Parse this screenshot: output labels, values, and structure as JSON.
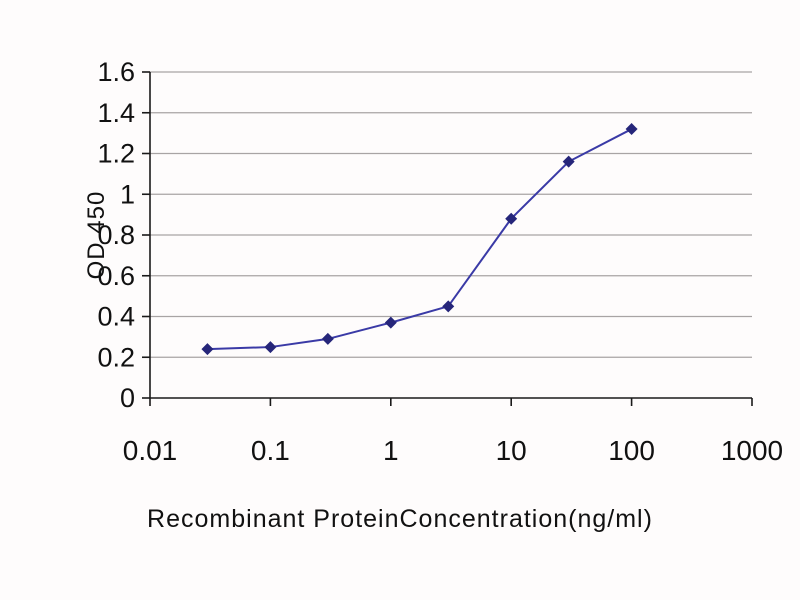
{
  "chart_data": {
    "type": "line",
    "title": "",
    "xlabel": "Recombinant ProteinConcentration(ng/ml)",
    "ylabel": "OD 450",
    "x_scale": "log",
    "xlim": [
      0.01,
      1000
    ],
    "ylim": [
      0,
      1.6
    ],
    "x": [
      0.03,
      0.1,
      0.3,
      1,
      3,
      10,
      30,
      100
    ],
    "series": [
      {
        "name": "OD 450",
        "values": [
          0.24,
          0.25,
          0.29,
          0.37,
          0.45,
          0.88,
          1.16,
          1.32
        ]
      }
    ],
    "y_ticks": [
      0,
      0.2,
      0.4,
      0.6,
      0.8,
      1,
      1.2,
      1.4,
      1.6
    ],
    "y_tick_labels": [
      "0",
      "0.2",
      "0.4",
      "0.6",
      "0.8",
      "1",
      "1.2",
      "1.4",
      "1.6"
    ],
    "x_ticks": [
      0.01,
      0.1,
      1,
      10,
      100,
      1000
    ],
    "x_tick_labels": [
      "0.01",
      "0.1",
      "1",
      "10",
      "100",
      "1000"
    ],
    "grid": "horizontal",
    "legend": "none",
    "colors": {
      "line": "#3a3aa6",
      "marker": "#26267a",
      "gridline": "#a8a4a4",
      "axis": "#1a1a1a",
      "background": "#fefcfc"
    },
    "marker": "diamond"
  }
}
